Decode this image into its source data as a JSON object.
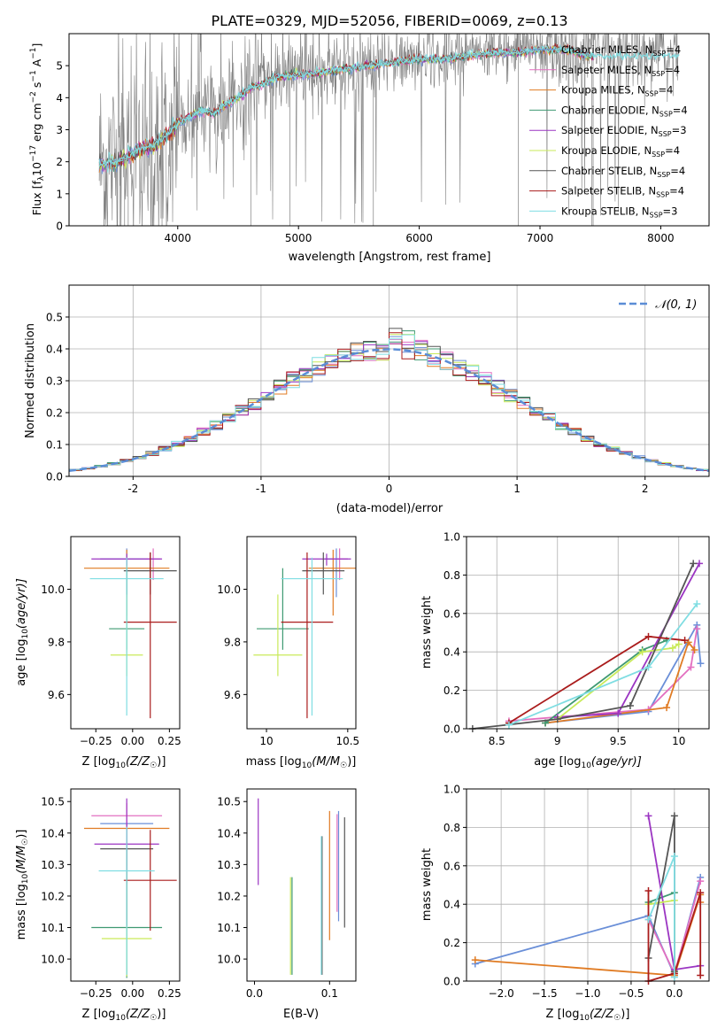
{
  "colors": {
    "Chabrier MILES": "#6a8fd8",
    "Salpeter MILES": "#e36fc0",
    "Kroupa MILES": "#e07b23",
    "Chabrier ELODIE": "#3f9a72",
    "Salpeter ELODIE": "#9b35c2",
    "Kroupa ELODIE": "#c9ea5a",
    "Chabrier STELIB": "#555555",
    "Salpeter STELIB": "#aa1c1c",
    "Kroupa STELIB": "#7fdde2",
    "spectrum": "#808080",
    "gaussian": "#5b8dd6"
  },
  "chart_data": [
    {
      "type": "line",
      "title": "PLATE=0329, MJD=52056, FIBERID=0069, z=0.13",
      "xlabel": "wavelength [Angstrom, rest frame]",
      "ylabel": "Flux [f_λ10^-17 erg cm^-2 s^-1 A^-1]",
      "xlim": [
        3100,
        8400
      ],
      "ylim": [
        0,
        6
      ],
      "xticks": [
        4000,
        5000,
        6000,
        7000,
        8000
      ],
      "yticks": [
        0,
        1,
        2,
        3,
        4,
        5
      ],
      "grid": false,
      "legend_position": "upper-right",
      "series": [
        {
          "name": "Chabrier MILES, N_SSP=4"
        },
        {
          "name": "Salpeter MILES, N_SSP=4"
        },
        {
          "name": "Kroupa MILES, N_SSP=4"
        },
        {
          "name": "Chabrier ELODIE, N_SSP=4"
        },
        {
          "name": "Salpeter ELODIE, N_SSP=3"
        },
        {
          "name": "Kroupa ELODIE, N_SSP=4"
        },
        {
          "name": "Chabrier STELIB, N_SSP=4"
        },
        {
          "name": "Salpeter STELIB, N_SSP=4"
        },
        {
          "name": "Kroupa STELIB, N_SSP=3"
        }
      ],
      "model_curve": {
        "x": [
          3350,
          3500,
          3600,
          3700,
          3800,
          3900,
          4000,
          4100,
          4200,
          4300,
          4400,
          4500,
          4600,
          4700,
          4800,
          4900,
          5000,
          5200,
          5400,
          5600,
          5800,
          6000,
          6200,
          6400,
          6600,
          6800,
          7000,
          7200,
          7400
        ],
        "y": [
          1.9,
          2.0,
          2.2,
          2.4,
          2.5,
          2.8,
          3.2,
          3.4,
          3.6,
          3.5,
          3.8,
          4.0,
          4.3,
          4.4,
          4.6,
          4.7,
          4.7,
          4.8,
          4.9,
          5.0,
          5.1,
          5.2,
          5.2,
          5.3,
          5.4,
          5.4,
          5.5,
          5.5,
          5.3
        ]
      }
    },
    {
      "type": "histogram",
      "xlabel": "(data-model)/error",
      "ylabel": "Normed distribution",
      "xlim": [
        -2.5,
        2.5
      ],
      "ylim": [
        0,
        0.6
      ],
      "xticks": [
        -2,
        -1,
        0,
        1,
        2
      ],
      "yticks": [
        0.0,
        0.1,
        0.2,
        0.3,
        0.4,
        0.5
      ],
      "grid": true,
      "legend": "N(0,1)",
      "legend_position": "upper-right",
      "bin_width": 0.1
    },
    {
      "type": "scatter",
      "subtype": "errorbar",
      "xlabel": "Z [log10(Z/Z☉)]",
      "ylabel": "age [log10(age/yr)]",
      "xlim": [
        -0.42,
        0.32
      ],
      "ylim": [
        9.47,
        10.2
      ],
      "xticks": [
        -0.25,
        0.0,
        0.25
      ],
      "xticklabels": [
        "−0.25",
        "0.00",
        "0.25"
      ],
      "yticks": [
        9.6,
        9.8,
        10.0
      ],
      "points": [
        {
          "model": "Chabrier MILES",
          "x": -0.04,
          "xerr": 0.18,
          "y": 10.115,
          "yerr_lo": 0.145,
          "yerr_hi": 0.04
        },
        {
          "model": "Salpeter MILES",
          "x": 0.14,
          "xerr": 0.05,
          "y": 10.115,
          "yerr_lo": 0.08,
          "yerr_hi": 0.04
        },
        {
          "model": "Kroupa MILES",
          "x": -0.04,
          "xerr": 0.29,
          "y": 10.08,
          "yerr_lo": 0.18,
          "yerr_hi": 0.07
        },
        {
          "model": "Chabrier ELODIE",
          "x": -0.04,
          "xerr": 0.12,
          "y": 9.85,
          "yerr_lo": 0.08,
          "yerr_hi": 0.23
        },
        {
          "model": "Salpeter ELODIE",
          "x": -0.04,
          "xerr": 0.24,
          "y": 10.115,
          "yerr_lo": 0.025,
          "yerr_hi": 0.02
        },
        {
          "model": "Kroupa ELODIE",
          "x": -0.04,
          "xerr": 0.11,
          "y": 9.75,
          "yerr_lo": 0.08,
          "yerr_hi": 0.23
        },
        {
          "model": "Chabrier STELIB",
          "x": 0.12,
          "xerr": 0.18,
          "y": 10.07,
          "yerr_lo": 0.09,
          "yerr_hi": 0.07
        },
        {
          "model": "Salpeter STELIB",
          "x": 0.12,
          "xerr": 0.18,
          "y": 9.875,
          "yerr_lo": 0.365,
          "yerr_hi": 0.265
        },
        {
          "model": "Kroupa STELIB",
          "x": -0.04,
          "xerr": 0.25,
          "y": 10.04,
          "yerr_lo": 0.52,
          "yerr_hi": 0.08
        }
      ]
    },
    {
      "type": "scatter",
      "subtype": "errorbar",
      "xlabel": "mass [log10(M/M☉)]",
      "ylabel": "",
      "xlim": [
        9.88,
        10.55
      ],
      "ylim": [
        9.47,
        10.2
      ],
      "xticks": [
        10.0,
        10.5
      ],
      "yticks": [
        9.6,
        9.8,
        10.0
      ],
      "points": [
        {
          "model": "Chabrier MILES",
          "x": 10.43,
          "xerr": 0.07,
          "y": 10.115,
          "yerr_lo": 0.145,
          "yerr_hi": 0.04
        },
        {
          "model": "Salpeter MILES",
          "x": 10.45,
          "xerr": 0.05,
          "y": 10.115,
          "yerr_lo": 0.08,
          "yerr_hi": 0.04
        },
        {
          "model": "Kroupa MILES",
          "x": 10.41,
          "xerr": 0.15,
          "y": 10.08,
          "yerr_lo": 0.18,
          "yerr_hi": 0.07
        },
        {
          "model": "Chabrier ELODIE",
          "x": 10.1,
          "xerr": 0.16,
          "y": 9.85,
          "yerr_lo": 0.08,
          "yerr_hi": 0.23
        },
        {
          "model": "Salpeter ELODIE",
          "x": 10.37,
          "xerr": 0.15,
          "y": 10.115,
          "yerr_lo": 0.025,
          "yerr_hi": 0.02
        },
        {
          "model": "Kroupa ELODIE",
          "x": 10.07,
          "xerr": 0.15,
          "y": 9.75,
          "yerr_lo": 0.08,
          "yerr_hi": 0.23
        },
        {
          "model": "Chabrier STELIB",
          "x": 10.35,
          "xerr": 0.13,
          "y": 10.07,
          "yerr_lo": 0.09,
          "yerr_hi": 0.07
        },
        {
          "model": "Salpeter STELIB",
          "x": 10.25,
          "xerr": 0.16,
          "y": 9.875,
          "yerr_lo": 0.365,
          "yerr_hi": 0.265
        },
        {
          "model": "Kroupa STELIB",
          "x": 10.28,
          "xerr": 0.19,
          "y": 10.04,
          "yerr_lo": 0.52,
          "yerr_hi": 0.08
        }
      ]
    },
    {
      "type": "line",
      "xlabel": "age [log10(age/yr)]",
      "ylabel": "mass weight",
      "xlim": [
        8.25,
        10.25
      ],
      "ylim": [
        0.0,
        1.0
      ],
      "xticks": [
        8.5,
        9.0,
        9.5,
        10.0
      ],
      "yticks": [
        0.0,
        0.2,
        0.4,
        0.6,
        0.8,
        1.0
      ],
      "grid": true,
      "series": [
        {
          "model": "Chabrier MILES",
          "x": [
            8.9,
            9.75,
            10.15,
            10.18
          ],
          "y": [
            0.03,
            0.09,
            0.54,
            0.34
          ]
        },
        {
          "model": "Salpeter MILES",
          "x": [
            8.6,
            9.75,
            10.1,
            10.15
          ],
          "y": [
            0.04,
            0.1,
            0.32,
            0.52
          ]
        },
        {
          "model": "Kroupa MILES",
          "x": [
            8.9,
            9.9,
            10.08,
            10.13
          ],
          "y": [
            0.03,
            0.11,
            0.45,
            0.41
          ]
        },
        {
          "model": "Chabrier ELODIE",
          "x": [
            8.9,
            9.7,
            9.9
          ],
          "y": [
            0.03,
            0.41,
            0.46
          ]
        },
        {
          "model": "Salpeter ELODIE",
          "x": [
            9.0,
            9.5,
            10.17
          ],
          "y": [
            0.06,
            0.08,
            0.86
          ]
        },
        {
          "model": "Kroupa ELODIE",
          "x": [
            9.0,
            9.7,
            9.95,
            10.0
          ],
          "y": [
            0.05,
            0.4,
            0.42,
            0.44
          ]
        },
        {
          "model": "Chabrier STELIB",
          "x": [
            8.3,
            9.0,
            9.6,
            10.12
          ],
          "y": [
            0.0,
            0.05,
            0.12,
            0.86
          ]
        },
        {
          "model": "Salpeter STELIB",
          "x": [
            8.6,
            9.75,
            10.05
          ],
          "y": [
            0.03,
            0.48,
            0.46
          ]
        },
        {
          "model": "Kroupa STELIB",
          "x": [
            8.6,
            9.75,
            10.15
          ],
          "y": [
            0.02,
            0.32,
            0.65
          ]
        }
      ]
    },
    {
      "type": "scatter",
      "subtype": "errorbar",
      "xlabel": "Z [log10(Z/Z☉)]",
      "ylabel": "mass [log10(M/M☉)]",
      "xlim": [
        -0.42,
        0.32
      ],
      "ylim": [
        9.93,
        10.54
      ],
      "xticks": [
        -0.25,
        0.0,
        0.25
      ],
      "xticklabels": [
        "−0.25",
        "0.00",
        "0.25"
      ],
      "yticks": [
        10.0,
        10.1,
        10.2,
        10.3,
        10.4,
        10.5
      ],
      "points": [
        {
          "model": "Chabrier MILES",
          "x": -0.04,
          "xerr": 0.18,
          "y": 10.43,
          "yerr_lo": 0.08,
          "yerr_hi": 0.0
        },
        {
          "model": "Salpeter MILES",
          "x": -0.04,
          "xerr": 0.24,
          "y": 10.455,
          "yerr_lo": 0.16,
          "yerr_hi": 0.04
        },
        {
          "model": "Kroupa MILES",
          "x": -0.04,
          "xerr": 0.29,
          "y": 10.415,
          "yerr_lo": 0.29,
          "yerr_hi": 0.0
        },
        {
          "model": "Chabrier ELODIE",
          "x": -0.04,
          "xerr": 0.24,
          "y": 10.1,
          "yerr_lo": 0.16,
          "yerr_hi": 0.16
        },
        {
          "model": "Salpeter ELODIE",
          "x": -0.04,
          "xerr": 0.22,
          "y": 10.365,
          "yerr_lo": 0.13,
          "yerr_hi": 0.145
        },
        {
          "model": "Kroupa ELODIE",
          "x": -0.04,
          "xerr": 0.17,
          "y": 10.065,
          "yerr_lo": 0.12,
          "yerr_hi": 0.21
        },
        {
          "model": "Chabrier STELIB",
          "x": -0.04,
          "xerr": 0.18,
          "y": 10.35,
          "yerr_lo": 0.245,
          "yerr_hi": 0.0
        },
        {
          "model": "Salpeter STELIB",
          "x": 0.12,
          "xerr": 0.18,
          "y": 10.25,
          "yerr_lo": 0.16,
          "yerr_hi": 0.16
        },
        {
          "model": "Kroupa STELIB",
          "x": -0.04,
          "xerr": 0.19,
          "y": 10.28,
          "yerr_lo": 0.33,
          "yerr_hi": 0.14
        }
      ]
    },
    {
      "type": "scatter",
      "subtype": "errorbar",
      "xlabel": "E(B-V)",
      "ylabel": "",
      "xlim": [
        -0.01,
        0.135
      ],
      "ylim": [
        9.93,
        10.54
      ],
      "xticks": [
        0.0,
        0.1
      ],
      "xticklabels": [
        "0.0",
        "0.1"
      ],
      "yticks": [
        10.0,
        10.1,
        10.2,
        10.3,
        10.4,
        10.5
      ],
      "points": [
        {
          "model": "Salpeter ELODIE",
          "x": 0.005,
          "y": 10.365,
          "yerr_lo": 0.13,
          "yerr_hi": 0.145
        },
        {
          "model": "Chabrier ELODIE",
          "x": 0.05,
          "y": 10.1,
          "yerr_lo": 0.15,
          "yerr_hi": 0.16
        },
        {
          "model": "Kroupa ELODIE",
          "x": 0.048,
          "y": 10.1,
          "yerr_lo": 0.15,
          "yerr_hi": 0.16
        },
        {
          "model": "Chabrier STELIB",
          "x": 0.09,
          "y": 10.19,
          "yerr_lo": 0.24,
          "yerr_hi": 0.2
        },
        {
          "model": "Kroupa STELIB",
          "x": 0.089,
          "y": 10.2,
          "yerr_lo": 0.25,
          "yerr_hi": 0.19
        },
        {
          "model": "Kroupa MILES",
          "x": 0.1,
          "y": 10.27,
          "yerr_lo": 0.21,
          "yerr_hi": 0.2
        },
        {
          "model": "Chabrier MILES",
          "x": 0.112,
          "y": 10.29,
          "yerr_lo": 0.17,
          "yerr_hi": 0.18
        },
        {
          "model": "Salpeter MILES",
          "x": 0.11,
          "y": 10.29,
          "yerr_lo": 0.14,
          "yerr_hi": 0.17
        },
        {
          "model": "Chabrier STELIB",
          "x": 0.12,
          "y": 10.23,
          "yerr_lo": 0.13,
          "yerr_hi": 0.22
        }
      ]
    },
    {
      "type": "line",
      "xlabel": "Z [log10(Z/Z☉)]",
      "ylabel": "mass weight",
      "xlim": [
        -2.4,
        0.4
      ],
      "ylim": [
        0.0,
        1.0
      ],
      "xticks": [
        -2.0,
        -1.5,
        -1.0,
        -0.5,
        0.0
      ],
      "xticklabels": [
        "−2.0",
        "−1.5",
        "−1.0",
        "−0.5",
        "0.0"
      ],
      "yticks": [
        0.0,
        0.2,
        0.4,
        0.6,
        0.8,
        1.0
      ],
      "grid": true,
      "series": [
        {
          "model": "Chabrier MILES",
          "x": [
            -2.3,
            -0.3,
            0.0,
            0.3
          ],
          "y": [
            0.09,
            0.34,
            0.03,
            0.54
          ]
        },
        {
          "model": "Salpeter MILES",
          "x": [
            -0.3,
            0.0,
            0.3
          ],
          "y": [
            0.32,
            0.04,
            0.52
          ]
        },
        {
          "model": "Kroupa MILES",
          "x": [
            -2.3,
            0.0,
            0.3,
            0.3
          ],
          "y": [
            0.11,
            0.03,
            0.45,
            0.41
          ]
        },
        {
          "model": "Chabrier ELODIE",
          "x": [
            -0.3,
            0.0
          ],
          "y": [
            0.41,
            0.46
          ]
        },
        {
          "model": "Salpeter ELODIE",
          "x": [
            -0.3,
            0.0,
            0.3
          ],
          "y": [
            0.86,
            0.06,
            0.08
          ]
        },
        {
          "model": "Kroupa ELODIE",
          "x": [
            -0.3,
            0.0,
            0.0
          ],
          "y": [
            0.4,
            0.42,
            0.05
          ]
        },
        {
          "model": "Chabrier STELIB",
          "x": [
            -0.3,
            0.0,
            0.0
          ],
          "y": [
            0.12,
            0.86,
            0.05
          ]
        },
        {
          "model": "Salpeter STELIB",
          "x": [
            -0.3,
            -0.3,
            0.0,
            0.3,
            0.3
          ],
          "y": [
            0.47,
            0.0,
            0.04,
            0.46,
            0.03
          ]
        },
        {
          "model": "Kroupa STELIB",
          "x": [
            -0.3,
            0.0,
            0.0
          ],
          "y": [
            0.32,
            0.65,
            0.02
          ]
        }
      ]
    }
  ],
  "labels": {
    "title": "PLATE=0329, MJD=52056, FIBERID=0069, z=0.13",
    "p1_xlabel": "wavelength [Angstrom, rest frame]",
    "p2_xlabel": "(data-model)/error",
    "p2_ylabel": "Normed distribution",
    "p2_legend": "𝒩(0, 1)",
    "p3_ylabel_pre": "age  [log",
    "p3_ylabel_post": "(age/yr)]",
    "mass_label_pre": "mass [log",
    "mass_label_post": "(M/M",
    "z_label_pre": "Z [log",
    "z_label_post": "(Z/Z",
    "ebv_label": "E(B-V)",
    "mass_weight": "mass weight",
    "age_label_pre": "age  [log",
    "age_label_post": "(age/yr)]"
  }
}
